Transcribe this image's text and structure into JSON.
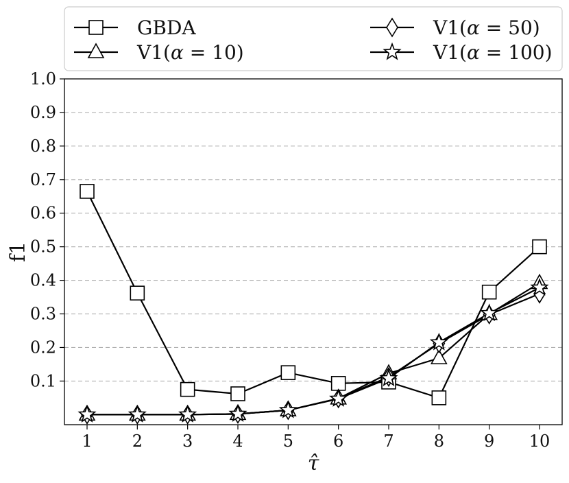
{
  "chart_data": {
    "type": "line",
    "title": "",
    "xlabel": "τ̂",
    "ylabel": "f1",
    "x": [
      1,
      2,
      3,
      4,
      5,
      6,
      7,
      8,
      9,
      10
    ],
    "xlim": [
      0.55,
      10.45
    ],
    "ylim": [
      -0.03,
      1.0
    ],
    "yticks": [
      0.1,
      0.2,
      0.3,
      0.4,
      0.5,
      0.6,
      0.7,
      0.8,
      0.9,
      1.0
    ],
    "ytick_labels": [
      "0.1",
      "0.2",
      "0.3",
      "0.4",
      "0.5",
      "0.6",
      "0.7",
      "0.8",
      "0.9",
      "1.0"
    ],
    "xticks": [
      1,
      2,
      3,
      4,
      5,
      6,
      7,
      8,
      9,
      10
    ],
    "xtick_labels": [
      "1",
      "2",
      "3",
      "4",
      "5",
      "6",
      "7",
      "8",
      "9",
      "10"
    ],
    "grid": "horizontal dashed",
    "legend_position": "top (above plot), two columns",
    "line_color": "#000000",
    "marker_fill": "#ffffff",
    "series": [
      {
        "name": "GBDA",
        "legend_prefix": "GBDA",
        "legend_alpha": "",
        "legend_suffix": "",
        "marker": "square",
        "values": [
          0.665,
          0.362,
          0.075,
          0.062,
          0.125,
          0.093,
          0.097,
          0.05,
          0.365,
          0.5
        ]
      },
      {
        "name": "V1(α = 10)",
        "legend_prefix": "V1(",
        "legend_alpha": "α",
        "legend_suffix": " = 10)",
        "marker": "triangle",
        "values": [
          0.0,
          0.0,
          0.0,
          0.002,
          0.013,
          0.048,
          0.123,
          0.168,
          0.3,
          0.392
        ]
      },
      {
        "name": "V1(α = 50)",
        "legend_prefix": "V1(",
        "legend_alpha": "α",
        "legend_suffix": " = 50)",
        "marker": "diamond",
        "values": [
          0.0,
          0.0,
          0.0,
          0.002,
          0.013,
          0.048,
          0.112,
          0.212,
          0.298,
          0.36
        ]
      },
      {
        "name": "V1(α = 100)",
        "legend_prefix": "V1(",
        "legend_alpha": "α",
        "legend_suffix": " = 100)",
        "marker": "star",
        "values": [
          0.0,
          0.0,
          0.0,
          0.002,
          0.013,
          0.047,
          0.108,
          0.215,
          0.302,
          0.378
        ]
      }
    ]
  }
}
